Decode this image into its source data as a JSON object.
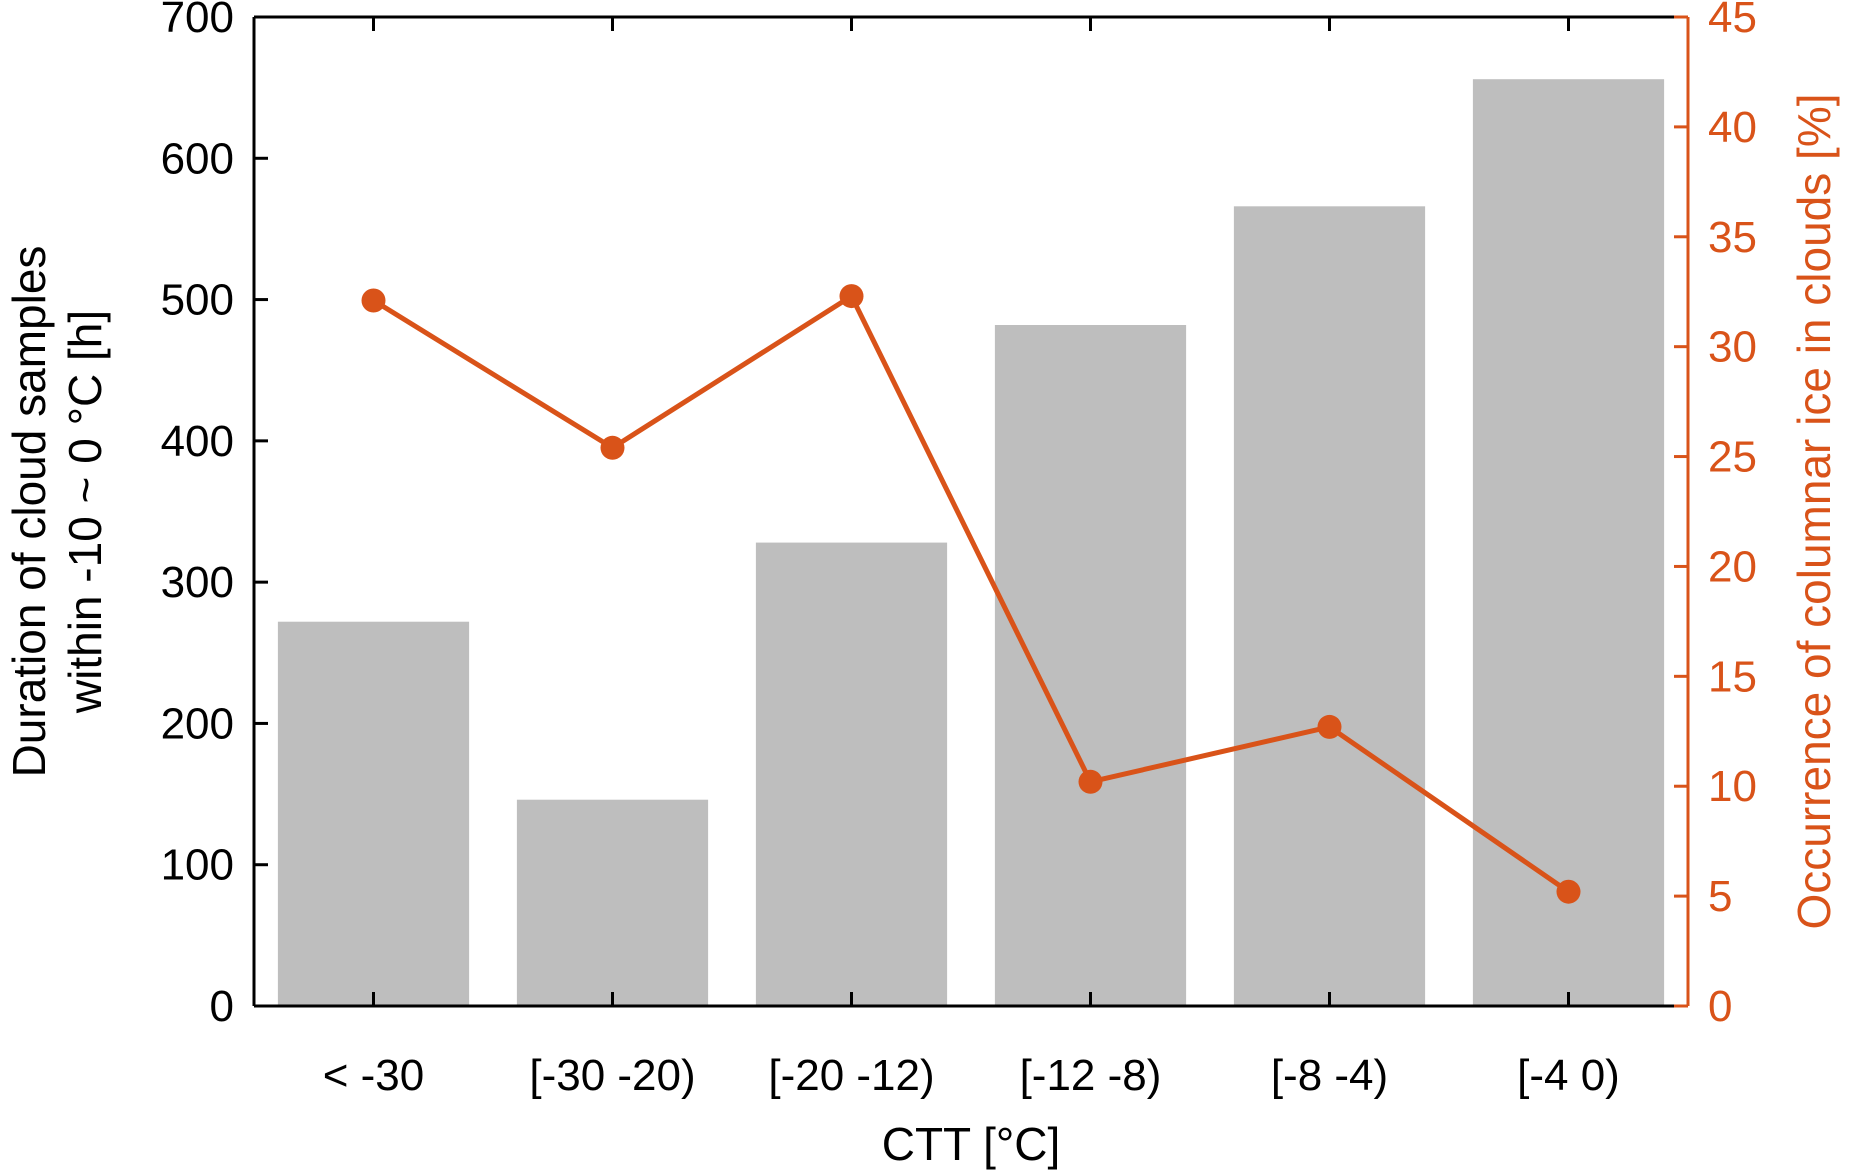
{
  "chart_data": {
    "type": "bar",
    "title": "",
    "xlabel": "CTT [°C]",
    "ylabel_lines": [
      "Duration of cloud samples",
      "within -10 ~ 0 °C [h]"
    ],
    "y2label": "Occurrence of columnar ice in clouds [%]",
    "categories": [
      "< -30",
      "[-30 -20)",
      "[-20 -12)",
      "[-12 -8)",
      "[-8 -4)",
      "[-4 0)"
    ],
    "series": [
      {
        "type": "bar",
        "axis": "left",
        "values": [
          272,
          146,
          328,
          482,
          566,
          656
        ],
        "color": "#bebebe"
      },
      {
        "type": "line",
        "axis": "right",
        "values": [
          32.1,
          25.4,
          32.3,
          10.2,
          12.7,
          5.2
        ],
        "color": "#d95319"
      }
    ],
    "ylim": [
      0,
      700
    ],
    "yticks": [
      0,
      100,
      200,
      300,
      400,
      500,
      600,
      700
    ],
    "y2lim": [
      0,
      45
    ],
    "y2ticks": [
      0,
      5,
      10,
      15,
      20,
      25,
      30,
      35,
      40,
      45
    ],
    "grid": false,
    "colors": {
      "axis": "#000000",
      "right_axis": "#d95319",
      "bars": "#bebebe",
      "line": "#d95319"
    }
  }
}
